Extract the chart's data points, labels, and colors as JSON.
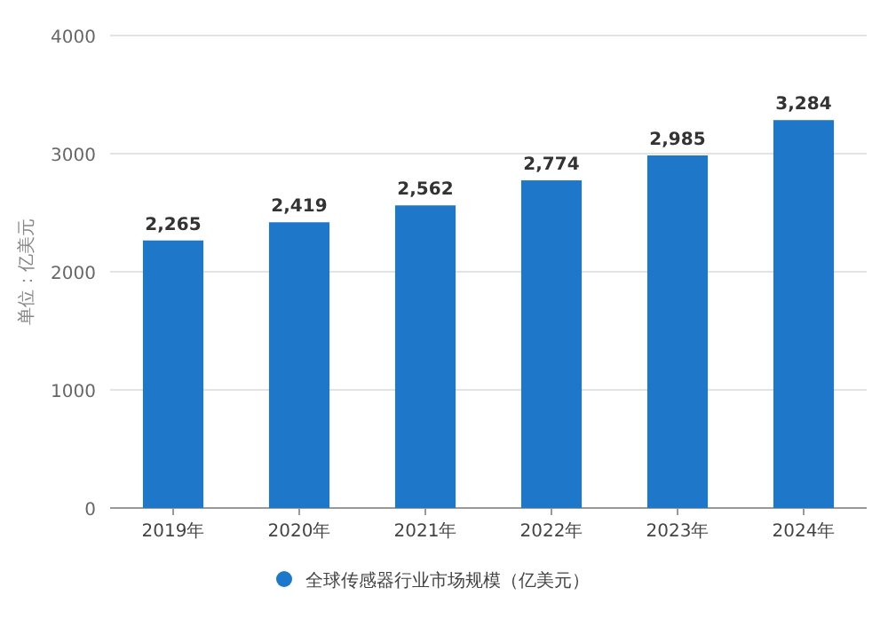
{
  "chart_data": {
    "type": "bar",
    "ylabel": "单位：亿美元",
    "categories": [
      "2019年",
      "2020年",
      "2021年",
      "2022年",
      "2023年",
      "2024年"
    ],
    "series": [
      {
        "name": "全球传感器行业市场规模（亿美元）",
        "color": "#1f77c9",
        "values": [
          2265,
          2419,
          2562,
          2774,
          2985,
          3284
        ],
        "value_labels": [
          "2,265",
          "2,419",
          "2,562",
          "2,774",
          "2,985",
          "3,284"
        ]
      }
    ],
    "ylim": [
      0,
      4000
    ],
    "yticks": [
      0,
      1000,
      2000,
      3000,
      4000
    ],
    "grid": "y",
    "legend": "bottom"
  }
}
